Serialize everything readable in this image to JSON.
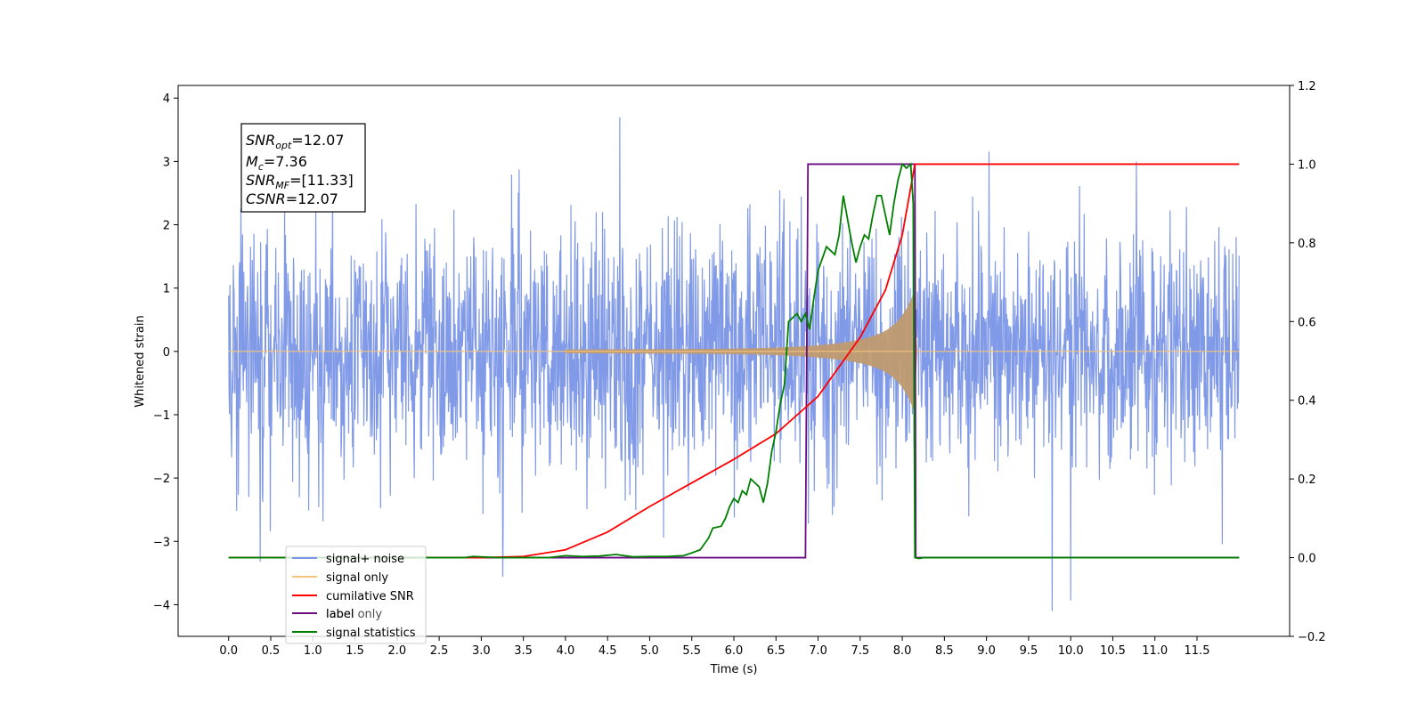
{
  "chart_data": {
    "type": "line",
    "xlabel": "Time (s)",
    "ylabel": "Whitened strain",
    "x_ticks": [
      "0.0",
      "0.5",
      "1.0",
      "1.5",
      "2.0",
      "2.5",
      "3.0",
      "3.5",
      "4.0",
      "4.5",
      "5.0",
      "5.5",
      "6.0",
      "6.5",
      "7.0",
      "7.5",
      "8.0",
      "8.5",
      "9.0",
      "9.5",
      "10.0",
      "10.5",
      "11.0",
      "11.5"
    ],
    "xlim": [
      -0.6,
      12.6
    ],
    "ylim_left": [
      -4.5,
      4.2
    ],
    "y_ticks_left": [
      "−4",
      "−3",
      "−2",
      "−1",
      "0",
      "1",
      "2",
      "3",
      "4"
    ],
    "ylim_right": [
      -0.2,
      1.2
    ],
    "y_ticks_right": [
      "−0.2",
      "0.0",
      "0.2",
      "0.4",
      "0.6",
      "0.8",
      "1.0",
      "1.2"
    ],
    "grid": false,
    "legend_position": "bottom-left",
    "annotation": {
      "snr_opt": "=12.07",
      "mc": "=7.36",
      "snr_mf": "=[11.33]",
      "csnr": "=12.07"
    },
    "series": [
      {
        "name": "signal+ noise",
        "color": "#7a95e6",
        "axis": "left",
        "description_values": {
          "x_start": 0.0,
          "x_end": 12.0,
          "noise_std": 1.0,
          "peak_max": 3.8,
          "peak_min": -4.1
        }
      },
      {
        "name": "signal only",
        "color": "#f5c37a",
        "axis": "left",
        "chirp": {
          "x_start": 4.0,
          "x_merger": 8.15,
          "amp_start": 0.03,
          "amp_merger": 0.95
        }
      },
      {
        "name": "cumilative SNR",
        "color": "#ff0000",
        "axis": "right",
        "x": [
          0.0,
          3.0,
          3.5,
          4.0,
          4.5,
          5.0,
          5.5,
          6.0,
          6.5,
          7.0,
          7.5,
          7.8,
          8.0,
          8.15,
          8.2,
          9.0,
          10.0,
          11.0,
          12.0
        ],
        "values": [
          0.0,
          0.0,
          0.003,
          0.02,
          0.065,
          0.13,
          0.19,
          0.25,
          0.315,
          0.41,
          0.56,
          0.68,
          0.82,
          1.0,
          1.0,
          1.0,
          1.0,
          1.0,
          1.0
        ]
      },
      {
        "name": "label",
        "color": "#6a0d83",
        "axis": "right",
        "x": [
          0.0,
          6.85,
          6.88,
          8.15,
          8.16,
          12.0
        ],
        "values": [
          0.0,
          0.0,
          1.0,
          1.0,
          0.0,
          0.0
        ]
      },
      {
        "name": "label only",
        "color": "#6a0d83",
        "axis": "right",
        "hidden_in_legend_overlap": true
      },
      {
        "name": "signal statistics",
        "color": "#008000",
        "axis": "right",
        "x": [
          0.0,
          2.8,
          2.9,
          3.2,
          3.8,
          4.0,
          4.2,
          4.4,
          4.6,
          4.8,
          5.0,
          5.2,
          5.4,
          5.5,
          5.6,
          5.7,
          5.75,
          5.85,
          5.9,
          5.95,
          6.0,
          6.05,
          6.1,
          6.15,
          6.2,
          6.3,
          6.35,
          6.4,
          6.45,
          6.5,
          6.55,
          6.6,
          6.65,
          6.7,
          6.75,
          6.8,
          6.85,
          6.9,
          6.95,
          7.0,
          7.05,
          7.1,
          7.15,
          7.2,
          7.25,
          7.3,
          7.35,
          7.4,
          7.45,
          7.5,
          7.55,
          7.6,
          7.65,
          7.7,
          7.75,
          7.8,
          7.85,
          7.9,
          7.95,
          8.0,
          8.05,
          8.1,
          8.13,
          8.15,
          8.2,
          8.25,
          12.0
        ],
        "values": [
          0.0,
          0.0,
          0.003,
          0.0,
          0.0,
          0.005,
          0.003,
          0.004,
          0.008,
          0.002,
          0.003,
          0.003,
          0.005,
          0.012,
          0.02,
          0.05,
          0.075,
          0.08,
          0.1,
          0.13,
          0.15,
          0.14,
          0.17,
          0.16,
          0.2,
          0.18,
          0.14,
          0.19,
          0.27,
          0.32,
          0.39,
          0.44,
          0.6,
          0.61,
          0.62,
          0.6,
          0.62,
          0.58,
          0.66,
          0.73,
          0.76,
          0.79,
          0.78,
          0.77,
          0.82,
          0.92,
          0.86,
          0.8,
          0.75,
          0.79,
          0.82,
          0.81,
          0.87,
          0.92,
          0.92,
          0.87,
          0.82,
          0.9,
          0.96,
          1.0,
          0.99,
          1.0,
          0.9,
          0.0,
          -0.002,
          0.0,
          0.0
        ]
      }
    ]
  }
}
